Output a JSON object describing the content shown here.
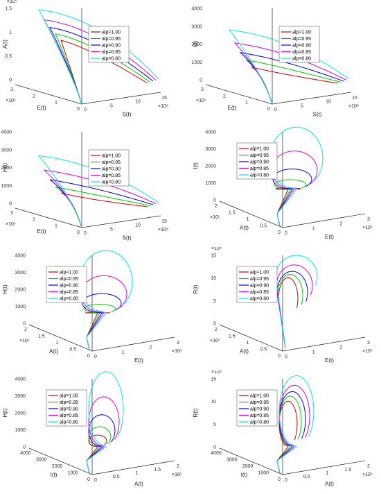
{
  "legend_labels": [
    "alp=1.00",
    "alp=0.95",
    "alp=0.90",
    "alp=0.85",
    "alp=0.80"
  ],
  "series_colors": [
    "#d00000",
    "#00cc00",
    "#0000dd",
    "#e000e0",
    "#00e5ee"
  ],
  "chart_data": [
    {
      "type": "line-3d",
      "zlabel": "A(t)",
      "xlabel": "E(t)",
      "ylabel": "S(t)",
      "z_ticks": [
        "0",
        "0.5",
        "1",
        "1.5"
      ],
      "z_mult": "×10⁵",
      "x_ticks": [
        "0",
        "1",
        "2",
        "3"
      ],
      "x_mult": "×10⁵",
      "y_ticks": [
        "0",
        "5",
        "10",
        "15"
      ],
      "y_mult": "×10⁸",
      "zlim": [
        0,
        150000
      ],
      "xlim": [
        0,
        300000
      ],
      "ylim": [
        0,
        1500000000
      ],
      "shape": "sweep",
      "peaks": [
        100000,
        110000,
        120000,
        132000,
        148000
      ]
    },
    {
      "type": "line-3d",
      "zlabel": "I(t)",
      "xlabel": "E(t)",
      "ylabel": "S(t)",
      "z_ticks": [
        "0",
        "1000",
        "2000",
        "3000",
        "4000"
      ],
      "z_mult": "",
      "x_ticks": [
        "0",
        "1",
        "2",
        "3"
      ],
      "x_mult": "×10⁵",
      "y_ticks": [
        "0",
        "5",
        "10",
        "15"
      ],
      "y_mult": "×10⁸",
      "zlim": [
        0,
        4000
      ],
      "xlim": [
        0,
        300000
      ],
      "ylim": [
        0,
        1500000000
      ],
      "shape": "sweep",
      "peaks": [
        1550,
        1850,
        2150,
        2550,
        3100
      ]
    },
    {
      "type": "line-3d",
      "zlabel": "H(t)",
      "xlabel": "E(t)",
      "ylabel": "S(t)",
      "z_ticks": [
        "0",
        "1000",
        "2000",
        "3000",
        "4000"
      ],
      "z_mult": "",
      "x_ticks": [
        "0",
        "1",
        "2",
        "3"
      ],
      "x_mult": "×10⁵",
      "y_ticks": [
        "0",
        "5",
        "10",
        "15"
      ],
      "y_mult": "×10⁸",
      "zlim": [
        0,
        4000
      ],
      "xlim": [
        0,
        300000
      ],
      "ylim": [
        0,
        1500000000
      ],
      "shape": "sweep",
      "peaks": [
        1450,
        1700,
        2000,
        2400,
        3000
      ]
    },
    {
      "type": "line-3d",
      "zlabel": "I(t)",
      "xlabel": "A(t)",
      "ylabel": "E(t)",
      "z_ticks": [
        "0",
        "1000",
        "2000",
        "3000",
        "4000"
      ],
      "z_mult": "",
      "x_ticks": [
        "0",
        "0.5",
        "1",
        "1.5",
        "2"
      ],
      "x_mult": "×10⁵",
      "y_ticks": [
        "0",
        "1",
        "2",
        "3"
      ],
      "y_mult": "×10⁵",
      "zlim": [
        0,
        4000
      ],
      "xlim": [
        0,
        200000
      ],
      "ylim": [
        0,
        300000
      ],
      "shape": "loop",
      "peaks": [
        1650,
        2000,
        2450,
        3200,
        4200
      ]
    },
    {
      "type": "line-3d",
      "zlabel": "H(t)",
      "xlabel": "A(t)",
      "ylabel": "E(t)",
      "z_ticks": [
        "0",
        "1000",
        "2000",
        "3000",
        "4000"
      ],
      "z_mult": "",
      "x_ticks": [
        "0",
        "0.5",
        "1",
        "1.5",
        "2"
      ],
      "x_mult": "×10⁵",
      "y_ticks": [
        "0",
        "1",
        "2",
        "3"
      ],
      "y_mult": "×10⁵",
      "zlim": [
        0,
        4000
      ],
      "xlim": [
        0,
        200000
      ],
      "ylim": [
        0,
        300000
      ],
      "shape": "loop",
      "peaks": [
        1600,
        1950,
        2400,
        3150,
        4200
      ]
    },
    {
      "type": "line-3d",
      "zlabel": "R(t)",
      "xlabel": "A(t)",
      "ylabel": "E(t)",
      "z_ticks": [
        "0",
        "5",
        "10",
        "15"
      ],
      "z_mult": "×10⁸",
      "x_ticks": [
        "0",
        "0.5",
        "1",
        "1.5",
        "2"
      ],
      "x_mult": "×10⁵",
      "y_ticks": [
        "0",
        "1",
        "2",
        "3"
      ],
      "y_mult": "×10⁵",
      "zlim": [
        0,
        1500000000
      ],
      "xlim": [
        0,
        200000
      ],
      "ylim": [
        0,
        300000
      ],
      "shape": "hook",
      "peaks": [
        1150000000,
        1200000000,
        1250000000,
        1350000000,
        1500000000
      ]
    },
    {
      "type": "line-3d",
      "zlabel": "H(t)",
      "xlabel": "I(t)",
      "ylabel": "A(t)",
      "z_ticks": [
        "0",
        "1000",
        "2000",
        "3000",
        "4000"
      ],
      "z_mult": "",
      "x_ticks": [
        "0",
        "1000",
        "2000",
        "3000",
        "4000"
      ],
      "x_mult": "",
      "y_ticks": [
        "0",
        "0.5",
        "1",
        "1.5",
        "2"
      ],
      "y_mult": "×10⁵",
      "zlim": [
        0,
        4000
      ],
      "xlim": [
        0,
        4000
      ],
      "ylim": [
        0,
        200000
      ],
      "shape": "tall",
      "peaks": [
        1650,
        2000,
        2500,
        3250,
        4300
      ]
    },
    {
      "type": "line-3d",
      "zlabel": "R(t)",
      "xlabel": "I(t)",
      "ylabel": "A(t)",
      "z_ticks": [
        "0",
        "5",
        "10",
        "15"
      ],
      "z_mult": "×10⁸",
      "x_ticks": [
        "0",
        "1000",
        "2000",
        "3000",
        "4000"
      ],
      "x_mult": "",
      "y_ticks": [
        "0",
        "0.5",
        "1",
        "1.5",
        "2"
      ],
      "y_mult": "×10⁵",
      "zlim": [
        0,
        1500000000
      ],
      "xlim": [
        0,
        4000
      ],
      "ylim": [
        0,
        200000
      ],
      "shape": "tall",
      "peaks": [
        1150000000,
        1230000000,
        1300000000,
        1400000000,
        1550000000
      ]
    }
  ]
}
